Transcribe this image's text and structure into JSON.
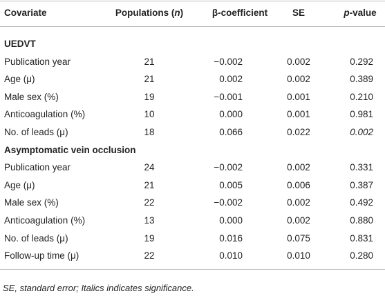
{
  "table": {
    "header": [
      "Covariate",
      [
        {
          "text": "Populations ("
        },
        {
          "text": "n",
          "italic": true
        },
        {
          "text": ")"
        }
      ],
      "β-coefficient",
      "SE",
      [
        {
          "text": "p",
          "italic": true
        },
        {
          "text": "-value"
        }
      ]
    ],
    "groups": [
      {
        "title": "UEDVT",
        "rows": [
          [
            "Publication year",
            "21",
            "−0.002",
            "0.002",
            "0.292"
          ],
          [
            "Age (μ)",
            "21",
            "0.002",
            "0.002",
            "0.389"
          ],
          [
            "Male sex (%)",
            "19",
            "−0.001",
            "0.001",
            "0.210"
          ],
          [
            "Anticoagulation (%)",
            "10",
            "0.000",
            "0.001",
            "0.981"
          ],
          [
            "No. of leads (μ)",
            "18",
            "0.066",
            "0.022",
            {
              "text": "0.002",
              "italic": true
            }
          ]
        ]
      },
      {
        "title": "Asymptomatic vein occlusion",
        "rows": [
          [
            "Publication year",
            "24",
            "−0.002",
            "0.002",
            "0.331"
          ],
          [
            "Age (μ)",
            "21",
            "0.005",
            "0.006",
            "0.387"
          ],
          [
            "Male sex (%)",
            "22",
            "−0.002",
            "0.002",
            "0.492"
          ],
          [
            "Anticoagulation (%)",
            "13",
            "0.000",
            "0.002",
            "0.880"
          ],
          [
            "No. of leads (μ)",
            "19",
            "0.016",
            "0.075",
            "0.831"
          ],
          [
            "Follow-up time (μ)",
            "22",
            "0.010",
            "0.010",
            "0.280"
          ]
        ]
      }
    ],
    "footnote": "SE, standard error; Italics indicates significance."
  }
}
